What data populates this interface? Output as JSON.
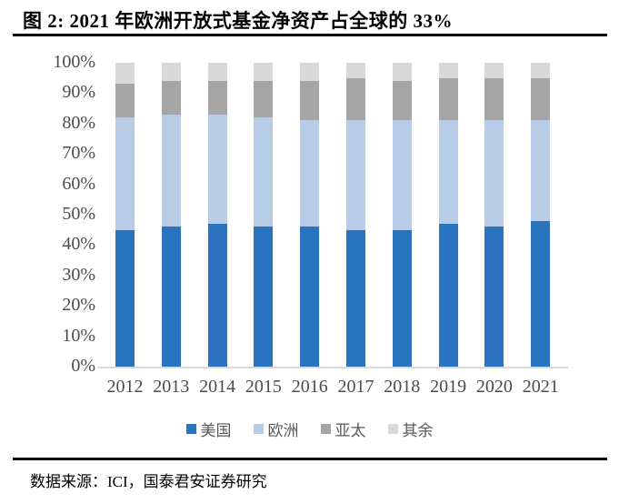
{
  "figure": {
    "title": "图 2: 2021 年欧洲开放式基金净资产占全球的 33%",
    "source": "数据来源：ICI，国泰君安证券研究"
  },
  "chart_data": {
    "type": "bar",
    "stacked": true,
    "title": "图 2: 2021 年欧洲开放式基金净资产占全球的 33%",
    "xlabel": "",
    "ylabel": "",
    "ylim": [
      0,
      100
    ],
    "grid": false,
    "legend_position": "bottom",
    "yticks": [
      "0%",
      "10%",
      "20%",
      "30%",
      "40%",
      "50%",
      "60%",
      "70%",
      "80%",
      "90%",
      "100%"
    ],
    "categories": [
      "2012",
      "2013",
      "2014",
      "2015",
      "2016",
      "2017",
      "2018",
      "2019",
      "2020",
      "2021"
    ],
    "series": [
      {
        "name": "美国",
        "color": "#2a73be",
        "values": [
          45,
          46,
          47,
          46,
          46,
          45,
          45,
          47,
          46,
          48
        ]
      },
      {
        "name": "欧洲",
        "color": "#b9cce7",
        "values": [
          37,
          37,
          36,
          36,
          35,
          36,
          36,
          34,
          35,
          33
        ]
      },
      {
        "name": "亚太",
        "color": "#a5a5a5",
        "values": [
          11,
          11,
          11,
          12,
          13,
          14,
          13,
          14,
          14,
          14
        ]
      },
      {
        "name": "其余",
        "color": "#d9d9d9",
        "values": [
          7,
          6,
          6,
          6,
          6,
          5,
          6,
          5,
          5,
          5
        ]
      }
    ],
    "axis_line_color": "#d9d9d9",
    "tick_label_color": "#4b4b52",
    "legend_label_color": "#595959"
  }
}
